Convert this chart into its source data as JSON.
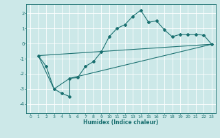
{
  "title": "",
  "xlabel": "Humidex (Indice chaleur)",
  "bg_color": "#cce8e8",
  "line_color": "#1a7070",
  "grid_color": "#ffffff",
  "xlim": [
    -0.5,
    23.5
  ],
  "ylim": [
    -4.6,
    2.6
  ],
  "yticks": [
    -4,
    -3,
    -2,
    -1,
    0,
    1,
    2
  ],
  "xticks": [
    0,
    1,
    2,
    3,
    4,
    5,
    6,
    7,
    8,
    9,
    10,
    11,
    12,
    13,
    14,
    15,
    16,
    17,
    18,
    19,
    20,
    21,
    22,
    23
  ],
  "line1_x": [
    1,
    2,
    3,
    4,
    5,
    5,
    6,
    7,
    8,
    9,
    10,
    11,
    12,
    13,
    14,
    15,
    16,
    17,
    18,
    19,
    20,
    21,
    22,
    23
  ],
  "line1_y": [
    -0.8,
    -1.5,
    -3.0,
    -3.3,
    -3.5,
    -2.3,
    -2.25,
    -1.5,
    -1.2,
    -0.55,
    0.45,
    1.0,
    1.25,
    1.8,
    2.2,
    1.4,
    1.5,
    0.9,
    0.45,
    0.6,
    0.6,
    0.6,
    0.55,
    -0.05
  ],
  "line2_x": [
    1,
    3,
    5,
    23
  ],
  "line2_y": [
    -0.8,
    -3.0,
    -2.3,
    -0.05
  ],
  "line3_x": [
    1,
    23
  ],
  "line3_y": [
    -0.8,
    -0.05
  ]
}
